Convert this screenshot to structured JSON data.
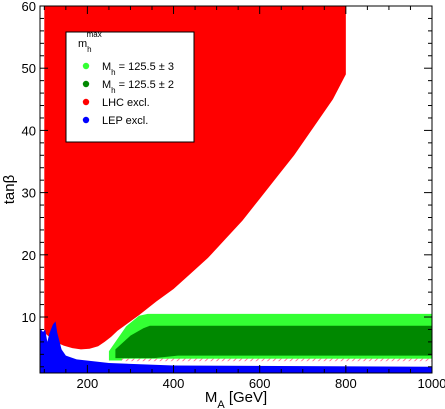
{
  "chart_data": {
    "type": "area",
    "title": "",
    "xlabel": "M_A [GeV]",
    "ylabel": "tanβ",
    "xlim": [
      90,
      1000
    ],
    "ylim": [
      1,
      60
    ],
    "xticks": [
      200,
      400,
      600,
      800,
      1000
    ],
    "yticks": [
      10,
      20,
      30,
      40,
      50,
      60
    ],
    "grid": false,
    "legend_position": "top-left",
    "legend_title": "m_h^max",
    "legend": [
      {
        "label": "M_h = 125.5 ± 3",
        "color": "#33ff33"
      },
      {
        "label": "M_h = 125.5 ± 2",
        "color": "#008800"
      },
      {
        "label": "LHC excl.",
        "color": "#ff0000"
      },
      {
        "label": "LEP excl.",
        "color": "#0000ff"
      }
    ],
    "regions": [
      {
        "name": "LHC excl.",
        "color": "#ff0000",
        "boundary_x": [
          100,
          100,
          800,
          800,
          770,
          720,
          680,
          640,
          600,
          560,
          520,
          480,
          440,
          400,
          360,
          320,
          290,
          270,
          255,
          240,
          225,
          205,
          185,
          165,
          145,
          125,
          100
        ],
        "boundary_y": [
          3.5,
          60,
          60,
          49,
          45,
          40,
          36,
          32.5,
          29,
          25.5,
          22.5,
          19.5,
          17,
          14.5,
          12.5,
          10.3,
          8.8,
          7.8,
          6.8,
          6.0,
          5.3,
          4.9,
          4.8,
          5.0,
          5.4,
          6.0,
          7.5
        ]
      },
      {
        "name": "M_h = 125.5 ± 3",
        "color": "#33ff33",
        "boundary_x": [
          250,
          290,
          320,
          340,
          1000,
          1000,
          380,
          320,
          250
        ],
        "boundary_y": [
          4.5,
          8.5,
          10.2,
          10.5,
          10.5,
          3.2,
          3.2,
          3.0,
          3.0
        ]
      },
      {
        "name": "M_h = 125.5 ± 2",
        "color": "#008800",
        "boundary_x": [
          265,
          300,
          330,
          345,
          1000,
          1000,
          410,
          355,
          265
        ],
        "boundary_y": [
          4.8,
          7.0,
          8.2,
          8.6,
          8.6,
          3.8,
          3.8,
          3.4,
          3.4
        ]
      },
      {
        "name": "LEP excl.",
        "color": "#0000ff",
        "boundary_x": [
          90,
          90,
          97,
          102,
          107,
          112,
          120,
          126,
          130,
          140,
          150,
          175,
          250,
          400,
          1000,
          1000
        ],
        "boundary_y": [
          1,
          8.2,
          7.6,
          8.0,
          6.0,
          7.4,
          8.8,
          9.3,
          7.5,
          4.8,
          3.8,
          3.2,
          2.6,
          2.2,
          2.0,
          1
        ]
      }
    ],
    "hatched_band": {
      "color": "#ff7799",
      "x": [
        280,
        1000
      ],
      "y": [
        2.9,
        3.3
      ]
    }
  }
}
